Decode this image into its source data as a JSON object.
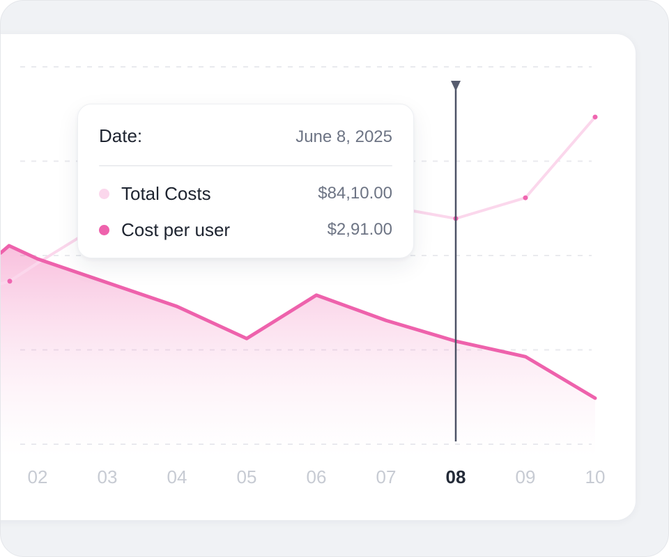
{
  "page": {
    "background_color": "#f0f2f5",
    "card_color": "#ffffff"
  },
  "tooltip": {
    "date_label": "Date:",
    "date_value": "June 8, 2025",
    "rows": [
      {
        "label": "Total Costs",
        "value": "$84,10.00",
        "dot_color": "#fbd7ec"
      },
      {
        "label": "Cost per user",
        "value": "$2,91.00",
        "dot_color": "#ee62ac"
      }
    ]
  },
  "chart_data": {
    "type": "line",
    "categories": [
      "02",
      "03",
      "04",
      "05",
      "06",
      "07",
      "08",
      "09",
      "10"
    ],
    "highlighted_category": "08",
    "y_axis": {
      "labels_visible": false,
      "range": [
        0,
        100
      ],
      "gridline_count": 5,
      "gridline_style": "dashed"
    },
    "series": [
      {
        "name": "Total Costs",
        "line_color": "#fbd7ec",
        "marker_color": "#ef66b0",
        "area": false,
        "values": [
          48.0,
          59.4,
          62.2,
          63.1,
          64.0,
          63.1,
          59.8,
          65.3,
          86.7
        ],
        "lead_in": [
          {
            "i": -0.53,
            "v": 42.5
          },
          {
            "i": -0.4,
            "v": 43.2
          }
        ],
        "markers_at": [
          -0.4,
          6,
          7,
          8
        ]
      },
      {
        "name": "Cost per user",
        "line_color": "#ee62ac",
        "area": true,
        "area_gradient": [
          "rgba(239,99,172,0.42)",
          "rgba(242,140,195,0.16)",
          "rgba(246,195,222,0)"
        ],
        "values": [
          49.1,
          42.8,
          36.5,
          28.0,
          39.5,
          32.8,
          27.3,
          23.2,
          12.2
        ],
        "lead_in": [
          {
            "i": -0.53,
            "v": 50.7
          },
          {
            "i": -0.41,
            "v": 52.6
          }
        ],
        "markers_at": []
      }
    ],
    "cursor": {
      "category": "08",
      "line_color": "#4d5366",
      "marker_color": "#575d6f"
    },
    "values_at_cursor": {
      "date": "June 8, 2025",
      "Total Costs": "$84,10.00",
      "Cost per user": "$2,91.00"
    },
    "grid_color": "#e9eaee"
  }
}
